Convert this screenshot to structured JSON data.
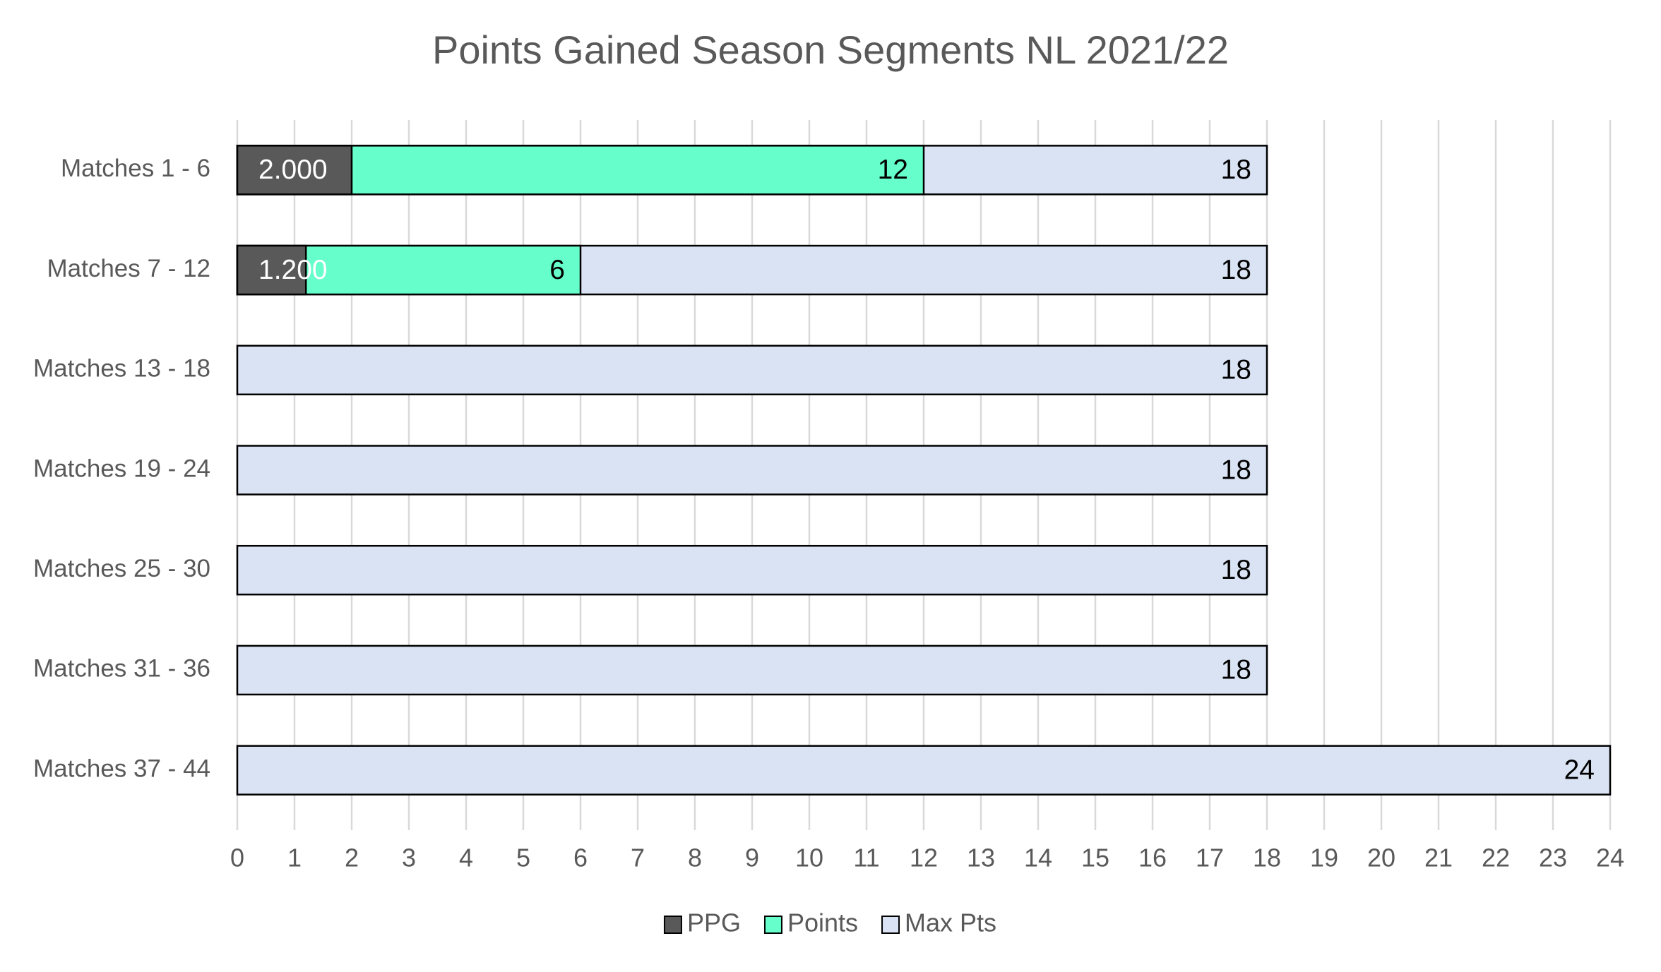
{
  "chart_data": {
    "type": "bar",
    "orientation": "horizontal",
    "barmode": "overlay",
    "title": "Points Gained Season Segments NL 2021/22",
    "categories": [
      "Matches 1 - 6",
      "Matches 7 - 12",
      "Matches 13 - 18",
      "Matches 19 - 24",
      "Matches 25 - 30",
      "Matches 31 - 36",
      "Matches 37 - 44"
    ],
    "series": [
      {
        "name": "PPG",
        "color": "#595959",
        "label_color": "#ffffff",
        "label_position": "inside_base",
        "values": [
          2.0,
          1.2,
          null,
          null,
          null,
          null,
          null
        ],
        "value_labels": [
          "2.000",
          "1.200",
          null,
          null,
          null,
          null,
          null
        ]
      },
      {
        "name": "Points",
        "color": "#66ffcc",
        "label_color": "#000000",
        "label_position": "inside_end",
        "values": [
          12,
          6,
          null,
          null,
          null,
          null,
          null
        ]
      },
      {
        "name": "Max Pts",
        "color": "#dae3f3",
        "label_color": "#000000",
        "label_position": "inside_end",
        "values": [
          18,
          18,
          18,
          18,
          18,
          18,
          24
        ]
      }
    ],
    "xlim": [
      0,
      24
    ],
    "xticks": [
      0,
      1,
      2,
      3,
      4,
      5,
      6,
      7,
      8,
      9,
      10,
      11,
      12,
      13,
      14,
      15,
      16,
      17,
      18,
      19,
      20,
      21,
      22,
      23,
      24
    ],
    "grid": true,
    "legend": "bottom"
  }
}
